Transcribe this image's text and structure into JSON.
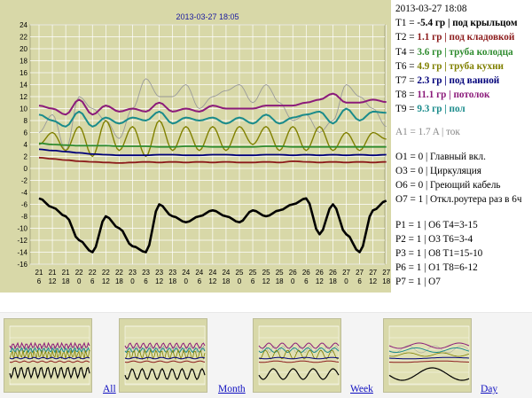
{
  "chart": {
    "title": "2013-03-27 18:05",
    "y_ticks": [
      "24",
      "22",
      "20",
      "18",
      "16",
      "14",
      "12",
      "10",
      "8",
      "6",
      "4",
      "2",
      "0",
      "-2",
      "-4",
      "-6",
      "-8",
      "-10",
      "-12",
      "-14",
      "-16"
    ],
    "x_ticks_day": [
      "21",
      "21",
      "21",
      "22",
      "22",
      "22",
      "22",
      "23",
      "23",
      "23",
      "23",
      "24",
      "24",
      "24",
      "24",
      "25",
      "25",
      "25",
      "25",
      "26",
      "26",
      "26",
      "26",
      "27",
      "27",
      "27",
      "27"
    ],
    "x_ticks_hour": [
      "6",
      "12",
      "18",
      "0",
      "6",
      "12",
      "18",
      "0",
      "6",
      "12",
      "18",
      "0",
      "6",
      "12",
      "18",
      "0",
      "6",
      "12",
      "18",
      "0",
      "6",
      "12",
      "18",
      "0",
      "6",
      "12",
      "18"
    ],
    "colors": {
      "bg": "#d8d8a8",
      "grid": "#ffffff",
      "t1": "#000000",
      "t2": "#8b1a1a",
      "t4": "#2e8b2e",
      "t6": "#808000",
      "t7": "#00007a",
      "t8": "#8b1a7a",
      "t9": "#1a8b8b",
      "a1": "#9a9a9a"
    }
  },
  "chart_data": {
    "type": "line",
    "title": "2013-03-27 18:05",
    "xlabel": "",
    "ylabel": "",
    "ylim": [
      -16,
      25
    ],
    "x": [
      "21 6",
      "21 12",
      "21 18",
      "22 0",
      "22 6",
      "22 12",
      "22 18",
      "23 0",
      "23 6",
      "23 12",
      "23 18",
      "24 0",
      "24 6",
      "24 12",
      "24 18",
      "25 0",
      "25 6",
      "25 12",
      "25 18",
      "26 0",
      "26 6",
      "26 12",
      "26 18",
      "27 0",
      "27 6",
      "27 12",
      "27 18"
    ],
    "series": [
      {
        "name": "T1",
        "values": [
          -5,
          -6.5,
          -8,
          -12,
          -14,
          -8,
          -10,
          -13,
          -14,
          -6,
          -8,
          -9,
          -8,
          -7,
          -8,
          -9,
          -7,
          -8,
          -7,
          -6,
          -5,
          -11,
          -6,
          -11,
          -14,
          -7,
          -5.4
        ]
      },
      {
        "name": "T2",
        "values": [
          1.8,
          1.6,
          1.4,
          1.2,
          1.1,
          1.0,
          0.9,
          1.0,
          1.1,
          1.0,
          1.1,
          1.0,
          1.1,
          1.0,
          1.1,
          1.0,
          1.0,
          1.1,
          1.0,
          1.2,
          1.1,
          1.0,
          1.1,
          1.0,
          1.1,
          1.0,
          1.1
        ]
      },
      {
        "name": "T4",
        "values": [
          4.2,
          4.0,
          3.9,
          3.8,
          3.8,
          3.8,
          3.7,
          3.7,
          3.7,
          3.6,
          3.6,
          3.7,
          3.7,
          3.6,
          3.6,
          3.6,
          3.6,
          3.7,
          3.7,
          3.6,
          3.6,
          3.6,
          3.6,
          3.6,
          3.6,
          3.6,
          3.6
        ]
      },
      {
        "name": "T6",
        "values": [
          4,
          6,
          3,
          7,
          2,
          8,
          3,
          7,
          2,
          8,
          3,
          7,
          3,
          7,
          3,
          7,
          4,
          7,
          3,
          7,
          3,
          7,
          3,
          6,
          3,
          6,
          4.9
        ]
      },
      {
        "name": "T7",
        "values": [
          3.2,
          3.0,
          2.8,
          2.6,
          2.4,
          2.3,
          2.2,
          2.2,
          2.2,
          2.3,
          2.3,
          2.2,
          2.2,
          2.3,
          2.3,
          2.2,
          2.2,
          2.3,
          2.3,
          2.2,
          2.3,
          2.2,
          2.3,
          2.2,
          2.3,
          2.2,
          2.3
        ]
      },
      {
        "name": "T8",
        "values": [
          10.5,
          10,
          9,
          11.5,
          9,
          10.5,
          9.5,
          10,
          9.5,
          11,
          9.5,
          10,
          9.5,
          10.5,
          10,
          10,
          10,
          10.5,
          10.5,
          10.5,
          11,
          11.5,
          12.5,
          11,
          11,
          11.5,
          11.1
        ]
      },
      {
        "name": "T9",
        "values": [
          9,
          8,
          7,
          9.5,
          7,
          8.5,
          7.5,
          8.5,
          8,
          9.5,
          7.5,
          8.5,
          8,
          8.5,
          7.5,
          8.5,
          7.5,
          9,
          7.5,
          8.5,
          9,
          9.5,
          7.5,
          10,
          8,
          9.5,
          9.3
        ]
      },
      {
        "name": "A1",
        "values": [
          6,
          9,
          3,
          12,
          10,
          8,
          5,
          10,
          15,
          12,
          12,
          14,
          10,
          12,
          13,
          14,
          11,
          14,
          11,
          8,
          9,
          6,
          8,
          14,
          12,
          10,
          7
        ]
      }
    ],
    "grid": true,
    "legend": "right"
  },
  "info": {
    "timestamp": "2013-03-27 18:08",
    "sensors": [
      {
        "key": "T1",
        "value": "-5.4 гр",
        "label": "под крыльцом",
        "color": "#000000"
      },
      {
        "key": "T2",
        "value": "1.1 гр",
        "label": "под кладовкой",
        "color": "#8b1a1a"
      },
      {
        "key": "T4",
        "value": "3.6 гр",
        "label": "труба колодца",
        "color": "#2e8b2e"
      },
      {
        "key": "T6",
        "value": "4.9 гр",
        "label": "труба кухни",
        "color": "#808000"
      },
      {
        "key": "T7",
        "value": "2.3 гр",
        "label": "под ванной",
        "color": "#00007a"
      },
      {
        "key": "T8",
        "value": "11.1 гр",
        "label": "потолок",
        "color": "#8b1a7a"
      },
      {
        "key": "T9",
        "value": "9.3 гр",
        "label": "пол",
        "color": "#1a8b8b"
      }
    ],
    "a1": {
      "key": "A1",
      "value": "1.7 A",
      "label": "ток"
    },
    "outputs": [
      {
        "key": "O1",
        "value": "0",
        "label": "Главный вкл."
      },
      {
        "key": "O3",
        "value": "0",
        "label": "Циркуляция"
      },
      {
        "key": "O6",
        "value": "0",
        "label": "Греющий кабель"
      },
      {
        "key": "O7",
        "value": "1",
        "label": "Откл.роутера раз в 6ч"
      }
    ],
    "programs": [
      {
        "key": "P1",
        "value": "1",
        "label": "O6 T4=3-15"
      },
      {
        "key": "P2",
        "value": "1",
        "label": "O3 T6=3-4"
      },
      {
        "key": "P3",
        "value": "1",
        "label": "O8 T1=15-10"
      },
      {
        "key": "P6",
        "value": "1",
        "label": "O1 T8=6-12"
      },
      {
        "key": "P7",
        "value": "1",
        "label": "O7"
      }
    ]
  },
  "thumbnails": [
    {
      "label": "All"
    },
    {
      "label": "Month"
    },
    {
      "label": "Week"
    },
    {
      "label": "Day"
    }
  ]
}
